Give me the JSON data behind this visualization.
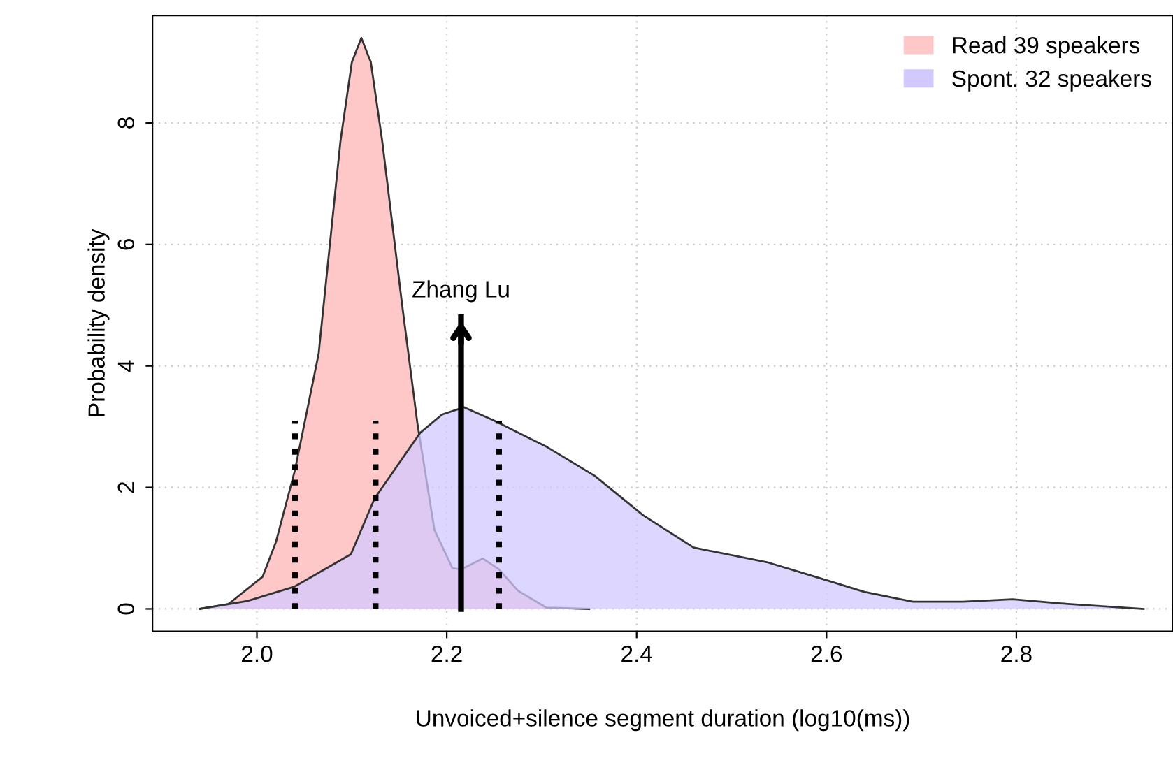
{
  "chart_data": {
    "type": "area",
    "xlabel": "Unvoiced+silence segment duration (log10(ms))",
    "ylabel": "Probability density",
    "xlim": [
      1.89,
      2.965
    ],
    "ylim": [
      -0.37,
      9.77
    ],
    "xticks": [
      {
        "value": 2.0,
        "label": "2.0"
      },
      2.2,
      2.4,
      2.6,
      2.8
    ],
    "yticks": [
      0,
      2,
      4,
      6,
      8
    ],
    "grid": true,
    "legend": "top right",
    "series": [
      {
        "name": "Read 39 speakers",
        "color": "#ffc8c8",
        "x": [
          1.94,
          1.97,
          2.006,
          2.02,
          2.04,
          2.065,
          2.088,
          2.1,
          2.11,
          2.12,
          2.132,
          2.153,
          2.169,
          2.187,
          2.206,
          2.215,
          2.238,
          2.255,
          2.275,
          2.305,
          2.35
        ],
        "values": [
          0,
          0.08,
          0.53,
          1.1,
          2.28,
          4.2,
          7.7,
          9.0,
          9.4,
          9.0,
          7.7,
          5.0,
          3.06,
          1.3,
          0.67,
          0.65,
          0.83,
          0.65,
          0.3,
          0.02,
          0
        ]
      },
      {
        "name": "Spont. 32 speakers",
        "color": "#d2caff",
        "x": [
          1.94,
          1.99,
          2.04,
          2.099,
          2.124,
          2.172,
          2.195,
          2.218,
          2.25,
          2.305,
          2.356,
          2.407,
          2.46,
          2.537,
          2.588,
          2.64,
          2.691,
          2.744,
          2.796,
          2.847,
          2.934
        ],
        "values": [
          0,
          0.13,
          0.37,
          0.9,
          1.82,
          2.9,
          3.2,
          3.32,
          3.1,
          2.67,
          2.19,
          1.54,
          1.01,
          0.77,
          0.53,
          0.28,
          0.12,
          0.12,
          0.16,
          0.09,
          0
        ]
      },
      {
        "type": "line",
        "color": "#000000",
        "line_style": "dotted",
        "x": [
          2.04,
          2.04
        ],
        "values": [
          0,
          3.1
        ]
      },
      {
        "type": "line",
        "color": "#000000",
        "line_style": "dotted",
        "x": [
          2.125,
          2.125
        ],
        "values": [
          0,
          3.1
        ]
      },
      {
        "type": "line",
        "color": "#000000",
        "line_style": "dotted",
        "x": [
          2.255,
          2.255
        ],
        "values": [
          0,
          3.1
        ]
      },
      {
        "type": "line",
        "name": "Zhang Lu",
        "color": "#000000",
        "line_style": "solid",
        "x": [
          2.215,
          2.215
        ],
        "values": [
          0,
          4.8
        ]
      }
    ]
  }
}
